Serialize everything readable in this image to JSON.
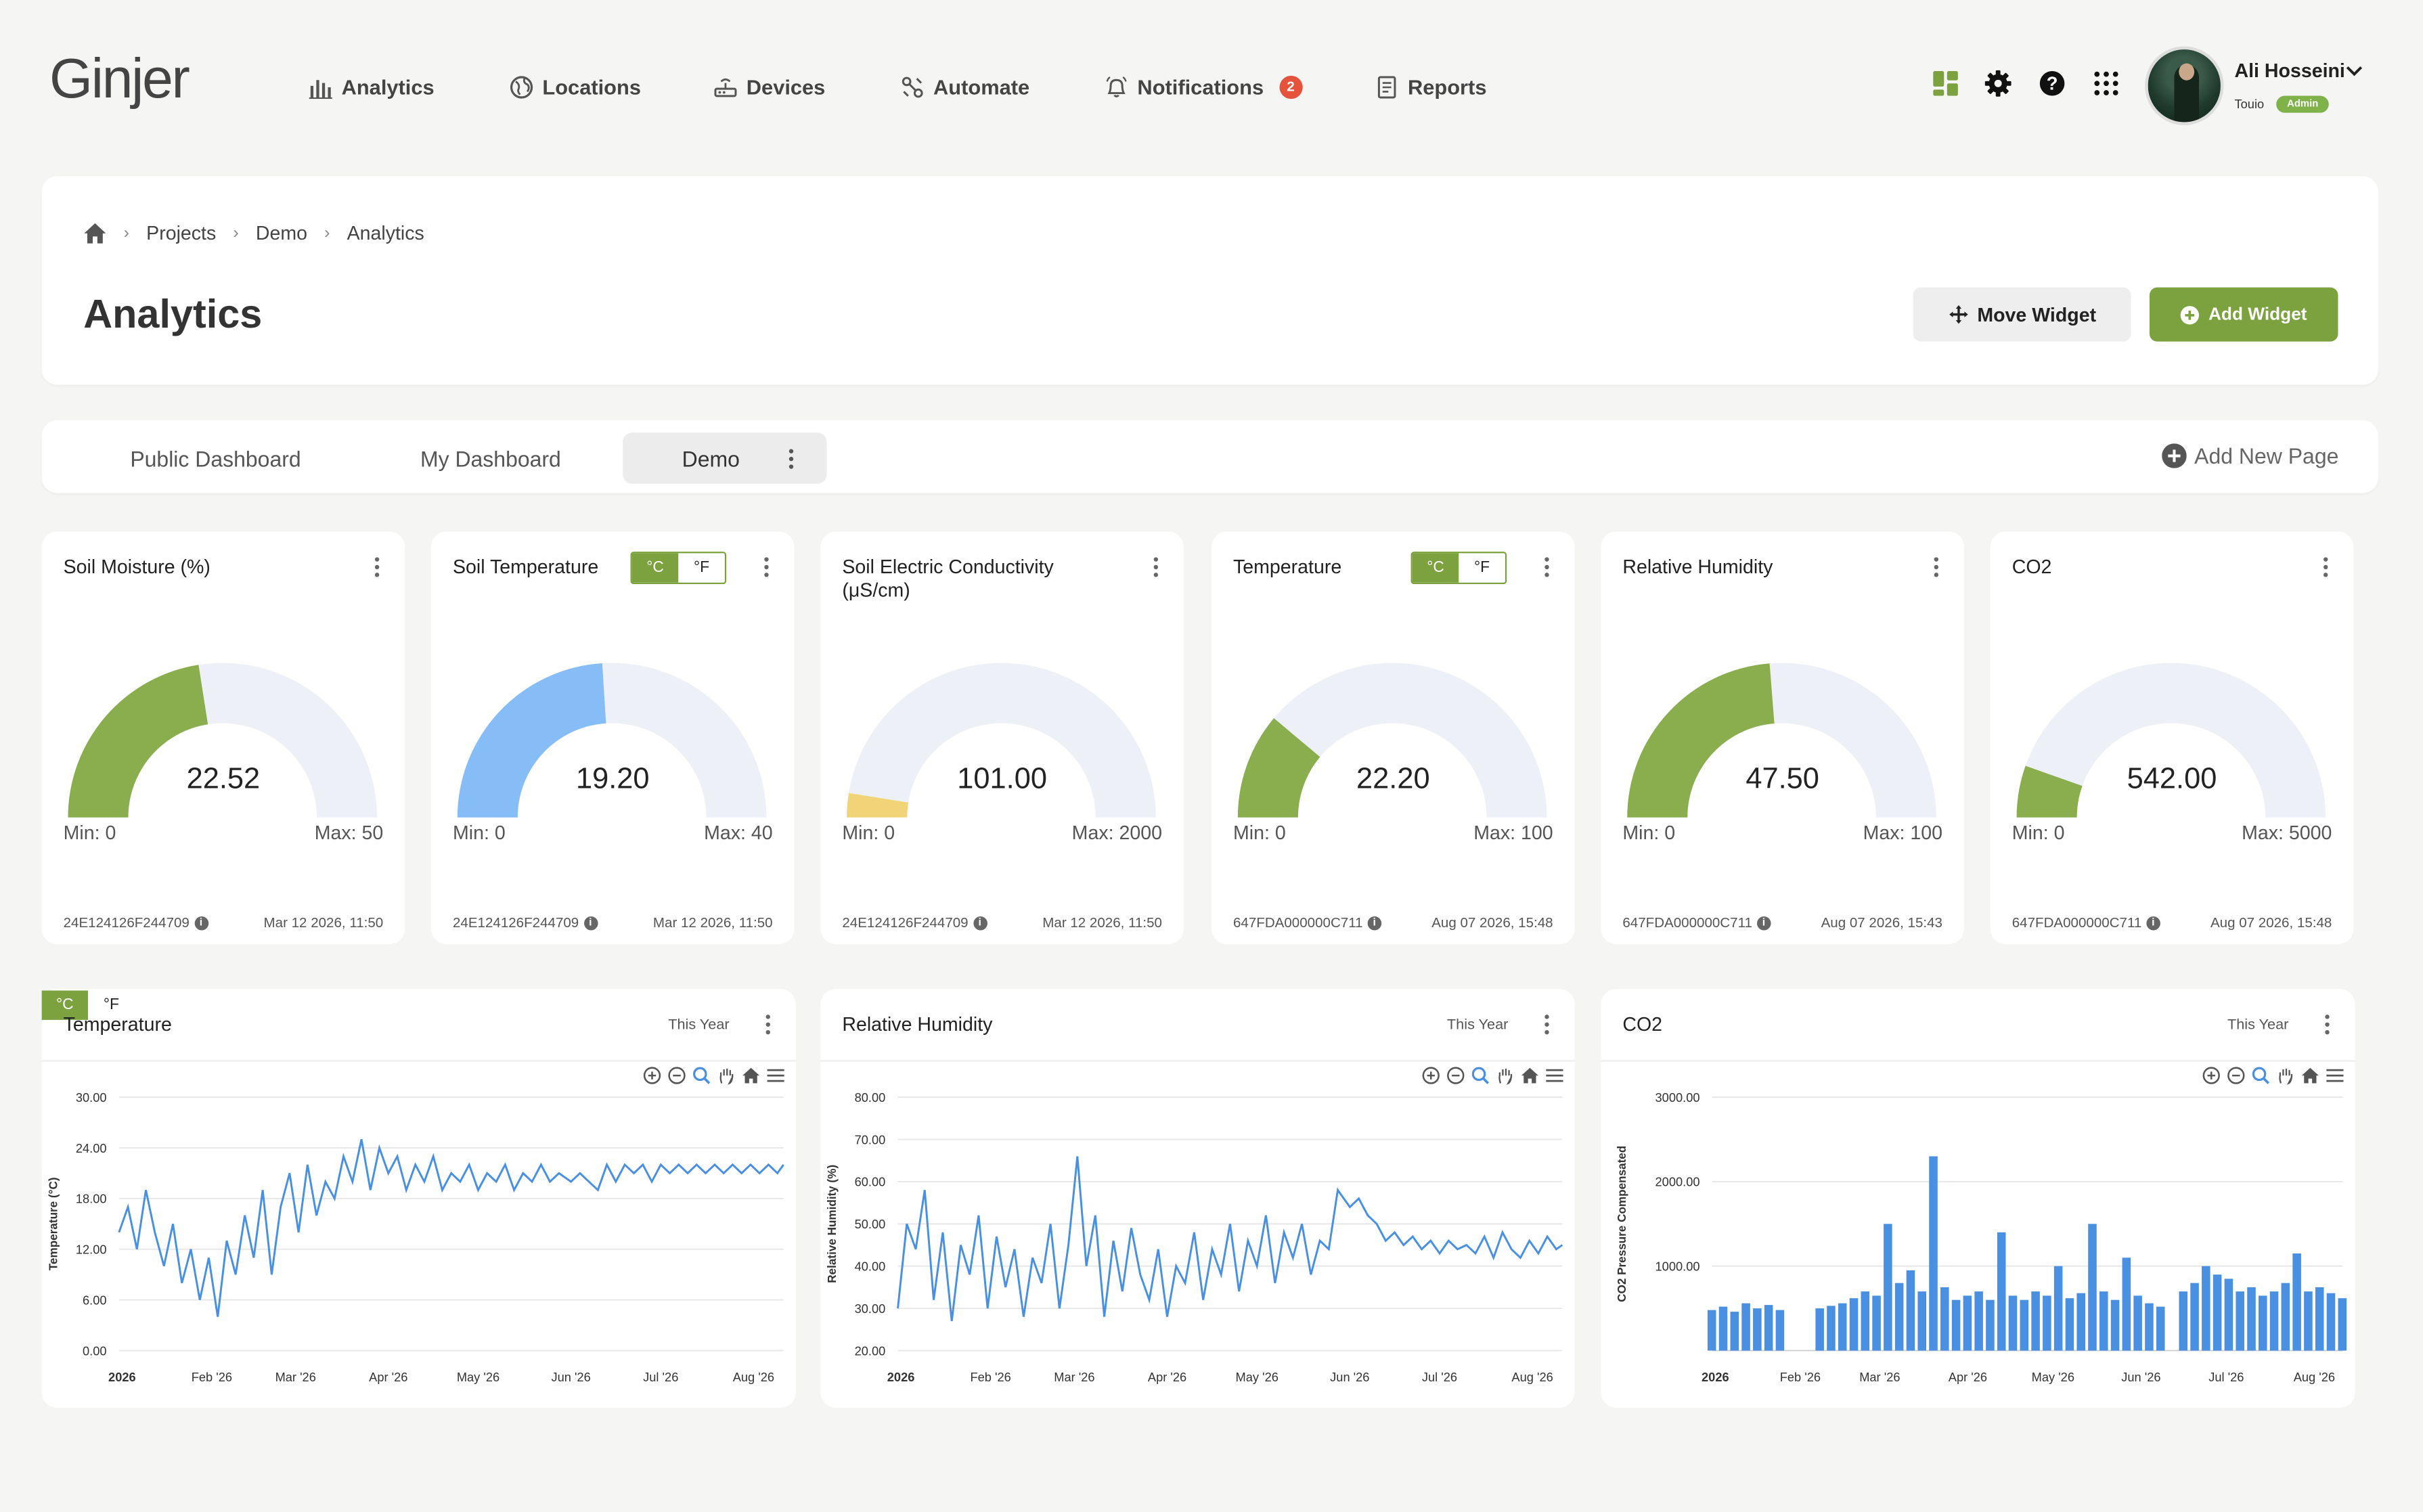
{
  "brand": {
    "logo_text": "Ginjer",
    "accent": "#7ba23f"
  },
  "nav": [
    {
      "label": "Analytics",
      "icon": "bar-chart-icon"
    },
    {
      "label": "Locations",
      "icon": "globe-icon"
    },
    {
      "label": "Devices",
      "icon": "router-icon"
    },
    {
      "label": "Automate",
      "icon": "automation-icon"
    },
    {
      "label": "Notifications",
      "icon": "bell-icon",
      "badge": "2"
    },
    {
      "label": "Reports",
      "icon": "report-icon"
    }
  ],
  "user": {
    "name": "Ali Hosseini",
    "org": "Touio",
    "role": "Admin"
  },
  "breadcrumb": {
    "items": [
      "Projects",
      "Demo",
      "Analytics"
    ]
  },
  "page": {
    "title": "Analytics",
    "move_widget": "Move Widget",
    "add_widget": "Add Widget"
  },
  "tabs": {
    "items": [
      "Public Dashboard",
      "My Dashboard",
      "Demo"
    ],
    "active": "Demo",
    "add_page": "Add New Page"
  },
  "unit": {
    "c": "°C",
    "f": "°F"
  },
  "gauges": [
    {
      "title": "Soil Moisture (%)",
      "value": "22.52",
      "num": 22.52,
      "min": "Min: 0",
      "max": "Max: 50",
      "maxv": 50,
      "color": "#8aae4e",
      "device": "24E124126F244709",
      "date": "Mar 12 2026, 11:50",
      "toggle": false
    },
    {
      "title": "Soil Temperature",
      "value": "19.20",
      "num": 19.2,
      "min": "Min: 0",
      "max": "Max: 40",
      "maxv": 40,
      "color": "#86bdf6",
      "device": "24E124126F244709",
      "date": "Mar 12 2026, 11:50",
      "toggle": true
    },
    {
      "title": "Soil Electric Conductivity (μS/cm)",
      "value": "101.00",
      "num": 101,
      "min": "Min: 0",
      "max": "Max: 2000",
      "maxv": 2000,
      "color": "#f2d478",
      "device": "24E124126F244709",
      "date": "Mar 12 2026, 11:50",
      "toggle": false
    },
    {
      "title": "Temperature",
      "value": "22.20",
      "num": 22.2,
      "min": "Min: 0",
      "max": "Max: 100",
      "maxv": 100,
      "color": "#8aae4e",
      "device": "647FDA000000C711",
      "date": "Aug 07 2026, 15:48",
      "toggle": true
    },
    {
      "title": "Relative Humidity",
      "value": "47.50",
      "num": 47.5,
      "min": "Min: 0",
      "max": "Max: 100",
      "maxv": 100,
      "color": "#8aae4e",
      "device": "647FDA000000C711",
      "date": "Aug 07 2026, 15:43",
      "toggle": false
    },
    {
      "title": "CO2",
      "value": "542.00",
      "num": 542,
      "min": "Min: 0",
      "max": "Max: 5000",
      "maxv": 5000,
      "color": "#8aae4e",
      "device": "647FDA000000C711",
      "date": "Aug 07 2026, 15:48",
      "toggle": false
    }
  ],
  "charts": [
    {
      "title": "Temperature",
      "range": "This Year",
      "toggle": true
    },
    {
      "title": "Relative Humidity",
      "range": "This Year",
      "toggle": false
    },
    {
      "title": "CO2",
      "range": "This Year",
      "toggle": false
    }
  ],
  "chart_data": [
    {
      "type": "line",
      "title": "Temperature",
      "ylabel": "Temperature (°C)",
      "ylim": [
        0,
        30
      ],
      "yticks": [
        "0.00",
        "6.00",
        "12.00",
        "18.00",
        "24.00",
        "30.00"
      ],
      "xticks": [
        "2026",
        "Feb '26",
        "Mar '26",
        "Apr '26",
        "May '26",
        "Jun '26",
        "Jul '26",
        "Aug '26"
      ],
      "xlim": [
        "2026-01-01",
        "2026-08-11"
      ],
      "color": "#4a90e2",
      "series": [
        {
          "values": [
            [
              "2026-01-01",
              14
            ],
            [
              "2026-01-04",
              17
            ],
            [
              "2026-01-07",
              12
            ],
            [
              "2026-01-10",
              19
            ],
            [
              "2026-01-13",
              14
            ],
            [
              "2026-01-16",
              10
            ],
            [
              "2026-01-19",
              15
            ],
            [
              "2026-01-22",
              8
            ],
            [
              "2026-01-25",
              12
            ],
            [
              "2026-01-28",
              6
            ],
            [
              "2026-01-31",
              11
            ],
            [
              "2026-02-03",
              4
            ],
            [
              "2026-02-06",
              13
            ],
            [
              "2026-02-09",
              9
            ],
            [
              "2026-02-12",
              16
            ],
            [
              "2026-02-15",
              11
            ],
            [
              "2026-02-18",
              19
            ],
            [
              "2026-02-21",
              9
            ],
            [
              "2026-02-24",
              17
            ],
            [
              "2026-02-27",
              21
            ],
            [
              "2026-03-02",
              14
            ],
            [
              "2026-03-05",
              22
            ],
            [
              "2026-03-08",
              16
            ],
            [
              "2026-03-11",
              20
            ],
            [
              "2026-03-14",
              18
            ],
            [
              "2026-03-17",
              23
            ],
            [
              "2026-03-20",
              20
            ],
            [
              "2026-03-23",
              25
            ],
            [
              "2026-03-26",
              19
            ],
            [
              "2026-03-29",
              24
            ],
            [
              "2026-04-01",
              21
            ],
            [
              "2026-04-04",
              23
            ],
            [
              "2026-04-07",
              19
            ],
            [
              "2026-04-10",
              22
            ],
            [
              "2026-04-13",
              20
            ],
            [
              "2026-04-16",
              23
            ],
            [
              "2026-04-19",
              19
            ],
            [
              "2026-04-22",
              21
            ],
            [
              "2026-04-25",
              20
            ],
            [
              "2026-04-28",
              22
            ],
            [
              "2026-05-01",
              19
            ],
            [
              "2026-05-04",
              21
            ],
            [
              "2026-05-07",
              20
            ],
            [
              "2026-05-10",
              22
            ],
            [
              "2026-05-13",
              19
            ],
            [
              "2026-05-16",
              21
            ],
            [
              "2026-05-19",
              20
            ],
            [
              "2026-05-22",
              22
            ],
            [
              "2026-05-25",
              20
            ],
            [
              "2026-05-28",
              21
            ],
            [
              "2026-06-01",
              20
            ],
            [
              "2026-06-04",
              21
            ],
            [
              "2026-06-07",
              20
            ],
            [
              "2026-06-10",
              19
            ],
            [
              "2026-06-13",
              22
            ],
            [
              "2026-06-16",
              20
            ],
            [
              "2026-06-19",
              22
            ],
            [
              "2026-06-22",
              21
            ],
            [
              "2026-06-25",
              22
            ],
            [
              "2026-06-28",
              20
            ],
            [
              "2026-07-01",
              22
            ],
            [
              "2026-07-04",
              21
            ],
            [
              "2026-07-07",
              22
            ],
            [
              "2026-07-10",
              21
            ],
            [
              "2026-07-13",
              22
            ],
            [
              "2026-07-16",
              21
            ],
            [
              "2026-07-19",
              22
            ],
            [
              "2026-07-22",
              21
            ],
            [
              "2026-07-25",
              22
            ],
            [
              "2026-07-28",
              21
            ],
            [
              "2026-07-31",
              22
            ],
            [
              "2026-08-03",
              21
            ],
            [
              "2026-08-06",
              22
            ],
            [
              "2026-08-09",
              21
            ],
            [
              "2026-08-11",
              22
            ]
          ]
        }
      ]
    },
    {
      "type": "line",
      "title": "Relative Humidity",
      "ylabel": "Relative Humidity (%)",
      "ylim": [
        20,
        80
      ],
      "yticks": [
        "20.00",
        "30.00",
        "40.00",
        "50.00",
        "60.00",
        "70.00",
        "80.00"
      ],
      "xticks": [
        "2026",
        "Feb '26",
        "Mar '26",
        "Apr '26",
        "May '26",
        "Jun '26",
        "Jul '26",
        "Aug '26"
      ],
      "xlim": [
        "2026-01-01",
        "2026-08-11"
      ],
      "color": "#4a90e2",
      "series": [
        {
          "values": [
            [
              "2026-01-01",
              30
            ],
            [
              "2026-01-04",
              50
            ],
            [
              "2026-01-07",
              44
            ],
            [
              "2026-01-10",
              58
            ],
            [
              "2026-01-13",
              32
            ],
            [
              "2026-01-16",
              48
            ],
            [
              "2026-01-19",
              27
            ],
            [
              "2026-01-22",
              45
            ],
            [
              "2026-01-25",
              38
            ],
            [
              "2026-01-28",
              52
            ],
            [
              "2026-01-31",
              30
            ],
            [
              "2026-02-03",
              47
            ],
            [
              "2026-02-06",
              35
            ],
            [
              "2026-02-09",
              44
            ],
            [
              "2026-02-12",
              28
            ],
            [
              "2026-02-15",
              42
            ],
            [
              "2026-02-18",
              36
            ],
            [
              "2026-02-21",
              50
            ],
            [
              "2026-02-24",
              30
            ],
            [
              "2026-02-27",
              45
            ],
            [
              "2026-03-02",
              66
            ],
            [
              "2026-03-05",
              40
            ],
            [
              "2026-03-08",
              52
            ],
            [
              "2026-03-11",
              28
            ],
            [
              "2026-03-14",
              46
            ],
            [
              "2026-03-17",
              34
            ],
            [
              "2026-03-20",
              49
            ],
            [
              "2026-03-23",
              38
            ],
            [
              "2026-03-26",
              32
            ],
            [
              "2026-03-29",
              44
            ],
            [
              "2026-04-01",
              28
            ],
            [
              "2026-04-04",
              40
            ],
            [
              "2026-04-07",
              36
            ],
            [
              "2026-04-10",
              48
            ],
            [
              "2026-04-13",
              32
            ],
            [
              "2026-04-16",
              44
            ],
            [
              "2026-04-19",
              38
            ],
            [
              "2026-04-22",
              50
            ],
            [
              "2026-04-25",
              34
            ],
            [
              "2026-04-28",
              46
            ],
            [
              "2026-05-01",
              40
            ],
            [
              "2026-05-04",
              52
            ],
            [
              "2026-05-07",
              36
            ],
            [
              "2026-05-10",
              48
            ],
            [
              "2026-05-13",
              42
            ],
            [
              "2026-05-16",
              50
            ],
            [
              "2026-05-19",
              38
            ],
            [
              "2026-05-22",
              46
            ],
            [
              "2026-05-25",
              44
            ],
            [
              "2026-05-28",
              58
            ],
            [
              "2026-06-01",
              54
            ],
            [
              "2026-06-04",
              56
            ],
            [
              "2026-06-07",
              52
            ],
            [
              "2026-06-10",
              50
            ],
            [
              "2026-06-13",
              46
            ],
            [
              "2026-06-16",
              48
            ],
            [
              "2026-06-19",
              45
            ],
            [
              "2026-06-22",
              47
            ],
            [
              "2026-06-25",
              44
            ],
            [
              "2026-06-28",
              46
            ],
            [
              "2026-07-01",
              43
            ],
            [
              "2026-07-04",
              46
            ],
            [
              "2026-07-07",
              44
            ],
            [
              "2026-07-10",
              45
            ],
            [
              "2026-07-13",
              43
            ],
            [
              "2026-07-16",
              47
            ],
            [
              "2026-07-19",
              42
            ],
            [
              "2026-07-22",
              48
            ],
            [
              "2026-07-25",
              44
            ],
            [
              "2026-07-28",
              42
            ],
            [
              "2026-07-31",
              46
            ],
            [
              "2026-08-03",
              43
            ],
            [
              "2026-08-06",
              47
            ],
            [
              "2026-08-09",
              44
            ],
            [
              "2026-08-11",
              45
            ]
          ]
        }
      ]
    },
    {
      "type": "bar",
      "title": "CO2",
      "ylabel": "CO2 Pressure Compensated",
      "ylim": [
        0,
        3000
      ],
      "yticks": [
        "1000.00",
        "2000.00",
        "3000.00"
      ],
      "xticks": [
        "2026",
        "Feb '26",
        "Mar '26",
        "Apr '26",
        "May '26",
        "Jun '26",
        "Jul '26",
        "Aug '26"
      ],
      "xlim": [
        "2026-01-01",
        "2026-08-11"
      ],
      "color": "#4a90e2",
      "series": [
        {
          "values": [
            [
              "2026-01-01",
              480
            ],
            [
              "2026-01-05",
              520
            ],
            [
              "2026-01-09",
              460
            ],
            [
              "2026-01-13",
              560
            ],
            [
              "2026-01-17",
              500
            ],
            [
              "2026-01-21",
              540
            ],
            [
              "2026-01-25",
              480
            ],
            [
              "2026-02-08",
              500
            ],
            [
              "2026-02-12",
              530
            ],
            [
              "2026-02-16",
              560
            ],
            [
              "2026-02-20",
              620
            ],
            [
              "2026-02-24",
              700
            ],
            [
              "2026-02-28",
              650
            ],
            [
              "2026-03-04",
              1500
            ],
            [
              "2026-03-08",
              800
            ],
            [
              "2026-03-12",
              950
            ],
            [
              "2026-03-16",
              700
            ],
            [
              "2026-03-20",
              2300
            ],
            [
              "2026-03-24",
              750
            ],
            [
              "2026-03-28",
              600
            ],
            [
              "2026-04-01",
              650
            ],
            [
              "2026-04-05",
              700
            ],
            [
              "2026-04-09",
              600
            ],
            [
              "2026-04-13",
              1400
            ],
            [
              "2026-04-17",
              650
            ],
            [
              "2026-04-21",
              600
            ],
            [
              "2026-04-25",
              700
            ],
            [
              "2026-04-29",
              650
            ],
            [
              "2026-05-03",
              1000
            ],
            [
              "2026-05-07",
              620
            ],
            [
              "2026-05-11",
              680
            ],
            [
              "2026-05-15",
              1500
            ],
            [
              "2026-05-19",
              700
            ],
            [
              "2026-05-23",
              600
            ],
            [
              "2026-05-27",
              1100
            ],
            [
              "2026-05-31",
              650
            ],
            [
              "2026-06-04",
              560
            ],
            [
              "2026-06-08",
              520
            ],
            [
              "2026-06-16",
              700
            ],
            [
              "2026-06-20",
              800
            ],
            [
              "2026-06-24",
              1000
            ],
            [
              "2026-06-28",
              900
            ],
            [
              "2026-07-02",
              850
            ],
            [
              "2026-07-06",
              700
            ],
            [
              "2026-07-10",
              750
            ],
            [
              "2026-07-14",
              650
            ],
            [
              "2026-07-18",
              700
            ],
            [
              "2026-07-22",
              800
            ],
            [
              "2026-07-26",
              1150
            ],
            [
              "2026-07-30",
              700
            ],
            [
              "2026-08-03",
              750
            ],
            [
              "2026-08-07",
              680
            ],
            [
              "2026-08-11",
              620
            ]
          ]
        }
      ]
    }
  ]
}
